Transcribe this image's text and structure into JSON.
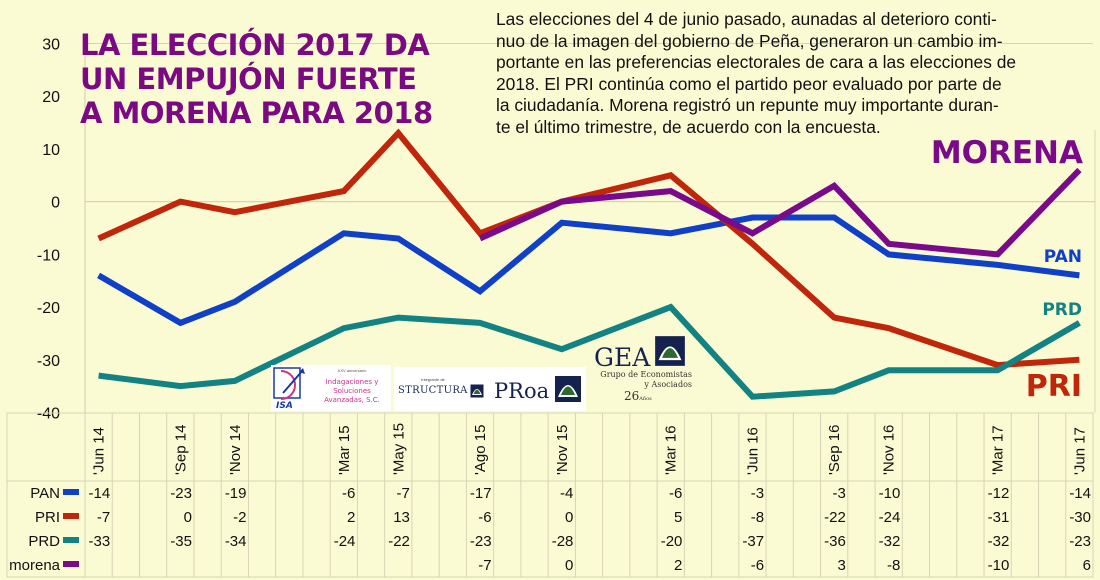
{
  "header": {
    "title_lines": [
      "LA ELECCIÓN 2017 DA",
      "UN EMPUJÓN FUERTE",
      "A MORENA PARA 2018"
    ],
    "description_lines": [
      "Las elecciones del 4 de junio pasado, aunadas al deterioro conti-",
      "nuo de la imagen del gobierno de Peña, generaron un cambio im-",
      "portante en las preferencias electorales de cara a las elecciones de",
      "2018. El PRI continúa como el partido peor evaluado por parte de",
      "la ciudadanía. Morena registró un repunte muy importante duran-",
      "te el último trimestre, de acuerdo con la encuesta."
    ]
  },
  "logos": {
    "isa": {
      "mark": "ISA",
      "small": "XXV aniversario",
      "name_lines": [
        "Indagaciones y Soluciones",
        "Avanzadas, S.C."
      ]
    },
    "structura": {
      "small": "Integrante de",
      "name": "STRUCTURA"
    },
    "proa": {
      "name": "PRoa"
    },
    "gea": {
      "name": "GEA",
      "sub1": "Grupo de Economistas",
      "sub2": "y Asociados",
      "years": "26",
      "years_suffix": "Años"
    }
  },
  "chart_data": {
    "type": "line",
    "title": "LA ELECCIÓN 2017 DA UN EMPUJÓN FUERTE A MORENA PARA 2018",
    "xlabel": "",
    "ylabel": "",
    "ylim": [
      -40,
      30
    ],
    "yticks": [
      30,
      20,
      10,
      0,
      -10,
      -20,
      -30,
      -40
    ],
    "grid": "horizontal lines at 30, 0 and -40; vertical month grid in table only",
    "legend": "data-table-bottom",
    "months_total": 37,
    "x": [
      "'Jun 14",
      "'Sep 14",
      "'Nov 14",
      "'Mar 15",
      "'May 15",
      "'Ago 15",
      "'Nov 15",
      "'Mar 16",
      "'Jun 16",
      "'Sep 16",
      "'Nov 16",
      "'Mar 17",
      "'Jun 17"
    ],
    "x_month_index": [
      0,
      3,
      5,
      9,
      11,
      14,
      17,
      21,
      24,
      27,
      29,
      33,
      36
    ],
    "series": [
      {
        "name": "PAN",
        "label": "PAN",
        "color": "#1040c8",
        "values": [
          -14,
          -23,
          -19,
          -6,
          -7,
          -17,
          -4,
          -6,
          -3,
          -3,
          -10,
          -12,
          -14
        ]
      },
      {
        "name": "PRI",
        "label": "PRI",
        "color": "#c0260a",
        "values": [
          -7,
          0,
          -2,
          2,
          13,
          -6,
          0,
          5,
          -8,
          -22,
          -24,
          -31,
          -30
        ]
      },
      {
        "name": "PRD",
        "label": "PRD",
        "color": "#138282",
        "values": [
          -33,
          -35,
          -34,
          -24,
          -22,
          -23,
          -28,
          -20,
          -37,
          -36,
          -32,
          -32,
          -23
        ]
      },
      {
        "name": "morena",
        "label": "MORENA",
        "color": "#7b0a8a",
        "values": [
          null,
          null,
          null,
          null,
          null,
          -7,
          0,
          2,
          -6,
          3,
          -8,
          -10,
          6
        ]
      }
    ]
  }
}
